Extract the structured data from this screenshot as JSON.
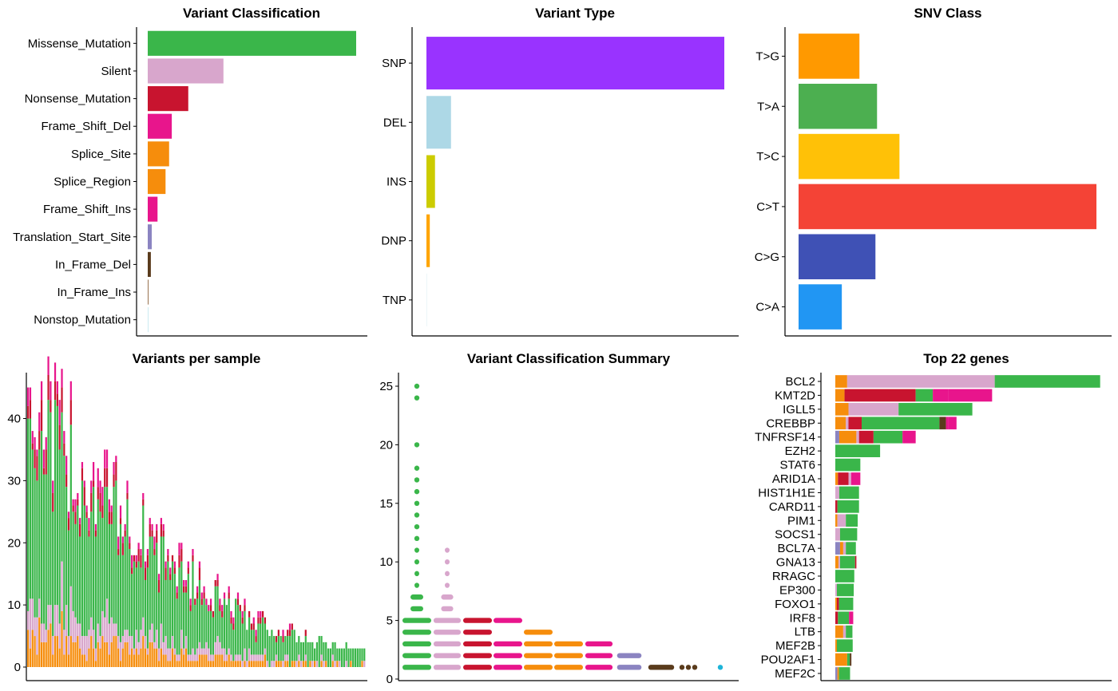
{
  "colors": {
    "Missense_Mutation": "#3ab64a",
    "Silent": "#d8a6cc",
    "Nonsense_Mutation": "#c8142f",
    "Frame_Shift_Del": "#e8158c",
    "Splice_Site": "#f68d0c",
    "Splice_Region": "#f68d0c",
    "Frame_Shift_Ins": "#e8158c",
    "Translation_Start_Site": "#8b84c1",
    "In_Frame_Del": "#5a3b1c",
    "In_Frame_Ins": "#8c6239",
    "Nonstop_Mutation": "#a8dde8"
  },
  "chart_data": [
    {
      "id": "variant-classification",
      "type": "bar",
      "title": "Variant Classification",
      "orientation": "horizontal",
      "categories": [
        "Missense_Mutation",
        "Silent",
        "Nonsense_Mutation",
        "Frame_Shift_Del",
        "Splice_Site",
        "Splice_Region",
        "Frame_Shift_Ins",
        "Translation_Start_Site",
        "In_Frame_Del",
        "In_Frame_Ins",
        "Nonstop_Mutation"
      ],
      "values": [
        2340,
        850,
        455,
        270,
        240,
        200,
        110,
        45,
        35,
        8,
        4
      ],
      "colors": [
        "#3ab64a",
        "#d8a6cc",
        "#c8142f",
        "#e8158c",
        "#f68d0c",
        "#f68d0c",
        "#e8158c",
        "#8b84c1",
        "#5a3b1c",
        "#8c6239",
        "#a8dde8"
      ],
      "xlim": [
        0,
        2340
      ]
    },
    {
      "id": "variant-type",
      "type": "bar",
      "title": "Variant Type",
      "orientation": "horizontal",
      "categories": [
        "SNP",
        "DEL",
        "INS",
        "DNP",
        "TNP"
      ],
      "values": [
        4000,
        330,
        115,
        45,
        5
      ],
      "colors": [
        "#9933ff",
        "#add8e6",
        "#cccc00",
        "#ffa500",
        "#e0f0f5"
      ],
      "xlim": [
        0,
        4000
      ]
    },
    {
      "id": "snv-class",
      "type": "bar",
      "title": "SNV Class",
      "orientation": "horizontal",
      "categories": [
        "T>G",
        "T>A",
        "T>C",
        "C>T",
        "C>G",
        "C>A"
      ],
      "values": [
        380,
        490,
        630,
        1860,
        480,
        270
      ],
      "colors": [
        "#ff9900",
        "#4caf50",
        "#ffc107",
        "#f44336",
        "#3f51b5",
        "#2196f3"
      ],
      "xlim": [
        0,
        1860
      ]
    },
    {
      "id": "variants-per-sample",
      "type": "bar",
      "title": "Variants per sample",
      "stacked": true,
      "ylim": [
        0,
        47
      ],
      "yticks": [
        0,
        10,
        20,
        30,
        40
      ],
      "sample_count": 150,
      "max_value": 45,
      "min_value": 3,
      "series_order": [
        "Splice_Site",
        "Silent",
        "Nonsense_Mutation",
        "Frame_Shift_Del",
        "Missense_Mutation"
      ]
    },
    {
      "id": "variant-classification-summary",
      "type": "scatter",
      "title": "Variant Classification Summary",
      "ylim": [
        0,
        26
      ],
      "yticks": [
        0,
        5,
        10,
        15,
        20,
        25
      ],
      "groups": [
        {
          "name": "Missense_Mutation",
          "color": "#3ab64a",
          "values": [
            1,
            2,
            3,
            4,
            5,
            6,
            7,
            8,
            9,
            10,
            11,
            12,
            13,
            14,
            15,
            16,
            17,
            18,
            20,
            24,
            25
          ],
          "width": 1.0
        },
        {
          "name": "Silent",
          "color": "#d8a6cc",
          "values": [
            1,
            2,
            3,
            4,
            5,
            6,
            7,
            8,
            9,
            10,
            11
          ],
          "width": 0.95
        },
        {
          "name": "Nonsense_Mutation",
          "color": "#c8142f",
          "values": [
            1,
            2,
            3,
            4,
            5
          ],
          "width": 1.0
        },
        {
          "name": "Frame_Shift_Del",
          "color": "#e8158c",
          "values": [
            1,
            2,
            3,
            5
          ],
          "width": 1.0
        },
        {
          "name": "Splice_Site",
          "color": "#f68d0c",
          "values": [
            1,
            2,
            3,
            4
          ],
          "width": 1.0
        },
        {
          "name": "Splice_Region",
          "color": "#f68d0c",
          "values": [
            1,
            2,
            3
          ],
          "width": 1.0
        },
        {
          "name": "Frame_Shift_Ins",
          "color": "#e8158c",
          "values": [
            1,
            2,
            3
          ],
          "width": 0.95
        },
        {
          "name": "Translation_Start_Site",
          "color": "#8b84c1",
          "values": [
            1,
            2
          ],
          "width": 0.85
        },
        {
          "name": "In_Frame_Del",
          "color": "#5a3b1c",
          "values": [
            1
          ],
          "width": 0.9
        },
        {
          "name": "In_Frame_Ins",
          "color": "#5a3b1c",
          "values": [
            1
          ],
          "width": 0.5
        },
        {
          "name": "Nonstop_Mutation",
          "color": "#1eb4d8",
          "values": [
            1
          ],
          "width": 0.0
        }
      ]
    },
    {
      "id": "top-genes",
      "type": "bar",
      "title": "Top 22 genes",
      "orientation": "horizontal",
      "stacked": true,
      "xlim": [
        0,
        100
      ],
      "genes": [
        {
          "gene": "BCL2",
          "parts": [
            [
              "Splice_Site",
              4.5
            ],
            [
              "Silent",
              56
            ],
            [
              "Missense_Mutation",
              40
            ]
          ]
        },
        {
          "gene": "KMT2D",
          "parts": [
            [
              "Splice_Site",
              3.5
            ],
            [
              "Nonsense_Mutation",
              27
            ],
            [
              "Missense_Mutation",
              6.5
            ],
            [
              "Frame_Shift_Del",
              6
            ],
            [
              "Frame_Shift_Ins",
              16.5
            ]
          ]
        },
        {
          "gene": "IGLL5",
          "parts": [
            [
              "Splice_Site",
              5
            ],
            [
              "Silent",
              19
            ],
            [
              "Missense_Mutation",
              28
            ]
          ]
        },
        {
          "gene": "CREBBP",
          "parts": [
            [
              "Splice_Site",
              4
            ],
            [
              "Silent",
              1
            ],
            [
              "Nonsense_Mutation",
              5
            ],
            [
              "Missense_Mutation",
              29.5
            ],
            [
              "In_Frame_Del",
              2.5
            ],
            [
              "Frame_Shift_Del",
              1
            ],
            [
              "Frame_Shift_Ins",
              3
            ]
          ]
        },
        {
          "gene": "TNFRSF14",
          "parts": [
            [
              "Translation_Start_Site",
              1.5
            ],
            [
              "Splice_Site",
              6.5
            ],
            [
              "Silent",
              1
            ],
            [
              "Nonsense_Mutation",
              5.5
            ],
            [
              "Missense_Mutation",
              11
            ],
            [
              "Frame_Shift_Del",
              5
            ]
          ]
        },
        {
          "gene": "EZH2",
          "parts": [
            [
              "Missense_Mutation",
              17
            ]
          ]
        },
        {
          "gene": "STAT6",
          "parts": [
            [
              "Missense_Mutation",
              9.5
            ]
          ]
        },
        {
          "gene": "ARID1A",
          "parts": [
            [
              "Splice_Site",
              1
            ],
            [
              "Nonsense_Mutation",
              4
            ],
            [
              "Silent",
              1
            ],
            [
              "Frame_Shift_Del",
              3.5
            ]
          ]
        },
        {
          "gene": "HIST1H1E",
          "parts": [
            [
              "Silent",
              1.5
            ],
            [
              "Missense_Mutation",
              7.5
            ]
          ]
        },
        {
          "gene": "CARD11",
          "parts": [
            [
              "Nonsense_Mutation",
              0.8
            ],
            [
              "Missense_Mutation",
              8.2
            ]
          ]
        },
        {
          "gene": "PIM1",
          "parts": [
            [
              "Splice_Site",
              0.8
            ],
            [
              "Silent",
              3.2
            ],
            [
              "Missense_Mutation",
              4.5
            ]
          ]
        },
        {
          "gene": "SOCS1",
          "parts": [
            [
              "Silent",
              1.8
            ],
            [
              "Missense_Mutation",
              6.5
            ]
          ]
        },
        {
          "gene": "BCL7A",
          "parts": [
            [
              "Translation_Start_Site",
              1.8
            ],
            [
              "Splice_Site",
              1.2
            ],
            [
              "Silent",
              1
            ],
            [
              "Missense_Mutation",
              3.8
            ]
          ]
        },
        {
          "gene": "GNA13",
          "parts": [
            [
              "Splice_Site",
              1.2
            ],
            [
              "Silent",
              0.6
            ],
            [
              "Missense_Mutation",
              5.7
            ],
            [
              "Nonsense_Mutation",
              0.5
            ]
          ]
        },
        {
          "gene": "RRAGC",
          "parts": [
            [
              "Missense_Mutation",
              7.2
            ]
          ]
        },
        {
          "gene": "EP300",
          "parts": [
            [
              "Silent",
              0.6
            ],
            [
              "Missense_Mutation",
              6.4
            ]
          ]
        },
        {
          "gene": "FOXO1",
          "parts": [
            [
              "Splice_Site",
              0.6
            ],
            [
              "Nonsense_Mutation",
              0.8
            ],
            [
              "Missense_Mutation",
              5.4
            ]
          ]
        },
        {
          "gene": "IRF8",
          "parts": [
            [
              "Nonsense_Mutation",
              1
            ],
            [
              "Missense_Mutation",
              4.2
            ],
            [
              "Frame_Shift_Del",
              1.6
            ]
          ]
        },
        {
          "gene": "LTB",
          "parts": [
            [
              "Splice_Site",
              3
            ],
            [
              "Silent",
              1
            ],
            [
              "Missense_Mutation",
              2.5
            ]
          ]
        },
        {
          "gene": "MEF2B",
          "parts": [
            [
              "Splice_Site",
              0.6
            ],
            [
              "Missense_Mutation",
              6
            ]
          ]
        },
        {
          "gene": "POU2AF1",
          "parts": [
            [
              "Splice_Site",
              4.5
            ],
            [
              "Missense_Mutation",
              1
            ],
            [
              "In_Frame_Del",
              0.6
            ]
          ]
        },
        {
          "gene": "MEF2C",
          "parts": [
            [
              "Translation_Start_Site",
              0.8
            ],
            [
              "Splice_Site",
              0.6
            ],
            [
              "Missense_Mutation",
              4.2
            ]
          ]
        }
      ]
    }
  ]
}
